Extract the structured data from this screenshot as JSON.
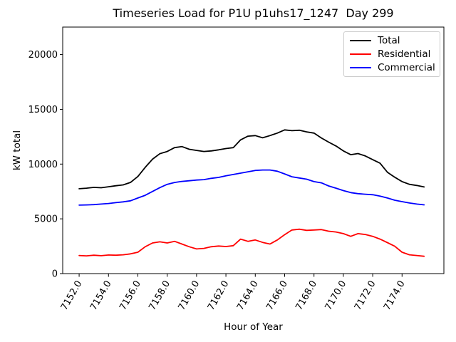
{
  "figure": {
    "background": "#ffffff"
  },
  "chart_data": {
    "type": "line",
    "title": "Timeseries Load for P1U p1uhs17_1247  Day 299",
    "xlabel": "Hour of Year",
    "ylabel": "kW total",
    "grid": false,
    "legend": {
      "position": "upper right"
    },
    "xlim": [
      7150.88,
      7176.85
    ],
    "ylim": [
      0,
      22510
    ],
    "xticks": {
      "values": [
        7152,
        7154,
        7156,
        7158,
        7160,
        7162,
        7164,
        7166,
        7168,
        7170,
        7172,
        7174
      ],
      "labels": [
        "7152.0",
        "7154.0",
        "7156.0",
        "7158.0",
        "7160.0",
        "7162.0",
        "7164.0",
        "7166.0",
        "7168.0",
        "7170.0",
        "7172.0",
        "7174.0"
      ],
      "rotation": -60
    },
    "yticks": {
      "values": [
        0,
        5000,
        10000,
        15000,
        20000
      ],
      "labels": [
        "0",
        "5000",
        "10000",
        "15000",
        "20000"
      ]
    },
    "x": [
      7152.0,
      7152.5,
      7153.0,
      7153.5,
      7154.0,
      7154.5,
      7155.0,
      7155.5,
      7156.0,
      7156.5,
      7157.0,
      7157.5,
      7158.0,
      7158.5,
      7159.0,
      7159.5,
      7160.0,
      7160.5,
      7161.0,
      7161.5,
      7162.0,
      7162.5,
      7163.0,
      7163.5,
      7164.0,
      7164.5,
      7165.0,
      7165.5,
      7166.0,
      7166.5,
      7167.0,
      7167.5,
      7168.0,
      7168.5,
      7169.0,
      7169.5,
      7170.0,
      7170.5,
      7171.0,
      7171.5,
      7172.0,
      7172.5,
      7173.0,
      7173.5,
      7174.0,
      7174.5,
      7175.0,
      7175.5
    ],
    "series": [
      {
        "name": "Total",
        "color": "#000000",
        "values": [
          7750,
          7800,
          7870,
          7840,
          7930,
          8020,
          8100,
          8330,
          8870,
          9700,
          10450,
          10950,
          11150,
          11500,
          11600,
          11350,
          11250,
          11150,
          11200,
          11300,
          11420,
          11500,
          12210,
          12550,
          12600,
          12400,
          12600,
          12830,
          13120,
          13050,
          13090,
          12940,
          12830,
          12390,
          12000,
          11650,
          11200,
          10860,
          10960,
          10740,
          10400,
          10080,
          9260,
          8800,
          8400,
          8150,
          8050,
          7910
        ]
      },
      {
        "name": "Residential",
        "color": "#ff0000",
        "values": [
          1650,
          1620,
          1680,
          1630,
          1700,
          1680,
          1720,
          1800,
          1950,
          2450,
          2800,
          2900,
          2800,
          2950,
          2700,
          2450,
          2250,
          2300,
          2450,
          2520,
          2470,
          2550,
          3150,
          2950,
          3070,
          2850,
          2700,
          3070,
          3550,
          3980,
          4050,
          3950,
          3980,
          4020,
          3870,
          3800,
          3650,
          3400,
          3650,
          3570,
          3400,
          3150,
          2830,
          2500,
          1950,
          1720,
          1650,
          1580
        ]
      },
      {
        "name": "Commercial",
        "color": "#0000ff",
        "values": [
          6250,
          6270,
          6300,
          6350,
          6400,
          6480,
          6550,
          6650,
          6900,
          7150,
          7500,
          7850,
          8150,
          8320,
          8420,
          8480,
          8540,
          8580,
          8700,
          8780,
          8930,
          9050,
          9170,
          9300,
          9420,
          9460,
          9460,
          9350,
          9100,
          8840,
          8730,
          8620,
          8400,
          8290,
          8000,
          7800,
          7580,
          7400,
          7300,
          7250,
          7200,
          7080,
          6900,
          6700,
          6570,
          6450,
          6350,
          6280
        ]
      }
    ]
  }
}
